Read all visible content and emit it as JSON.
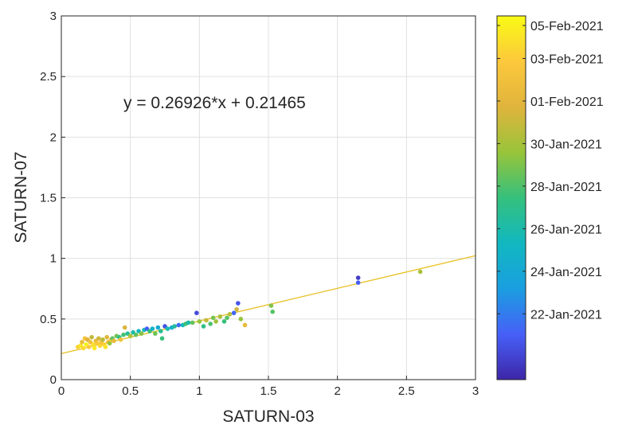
{
  "chart_data": {
    "type": "scatter",
    "title": "",
    "xlabel": "SATURN-03",
    "ylabel": "SATURN-07",
    "xlim": [
      0,
      3
    ],
    "ylim": [
      0,
      3
    ],
    "x_ticks": [
      "0",
      "0.5",
      "1",
      "1.5",
      "2",
      "2.5",
      "3"
    ],
    "y_ticks": [
      "0",
      "0.5",
      "1",
      "1.5",
      "2",
      "2.5",
      "3"
    ],
    "grid": true,
    "annotation": "y = 0.26926*x + 0.21465",
    "fit_line": {
      "slope": 0.26926,
      "intercept": 0.21465,
      "color": "#e8c020"
    },
    "colorbar": {
      "ticks": [
        "05-Feb-2021",
        "03-Feb-2021",
        "01-Feb-2021",
        "30-Jan-2021",
        "28-Jan-2021",
        "26-Jan-2021",
        "24-Jan-2021",
        "22-Jan-2021"
      ],
      "tick_values": [
        1.0,
        0.883,
        0.766,
        0.649,
        0.532,
        0.415,
        0.298,
        0.181
      ],
      "colormap": [
        "#3e26a8",
        "#4760f8",
        "#1a9ee0",
        "#11b8c0",
        "#35c07c",
        "#98c43a",
        "#e0b43c",
        "#fcc83c",
        "#f9fb15"
      ]
    },
    "points": [
      {
        "x": 0.12,
        "y": 0.27,
        "c": 0.9
      },
      {
        "x": 0.14,
        "y": 0.28,
        "c": 0.95
      },
      {
        "x": 0.15,
        "y": 0.31,
        "c": 0.8
      },
      {
        "x": 0.16,
        "y": 0.26,
        "c": 0.92
      },
      {
        "x": 0.17,
        "y": 0.34,
        "c": 0.85
      },
      {
        "x": 0.18,
        "y": 0.29,
        "c": 0.98
      },
      {
        "x": 0.19,
        "y": 0.33,
        "c": 0.75
      },
      {
        "x": 0.2,
        "y": 0.27,
        "c": 0.88
      },
      {
        "x": 0.21,
        "y": 0.31,
        "c": 0.82
      },
      {
        "x": 0.22,
        "y": 0.35,
        "c": 0.7
      },
      {
        "x": 0.23,
        "y": 0.29,
        "c": 0.93
      },
      {
        "x": 0.24,
        "y": 0.26,
        "c": 0.96
      },
      {
        "x": 0.25,
        "y": 0.32,
        "c": 0.78
      },
      {
        "x": 0.26,
        "y": 0.3,
        "c": 0.86
      },
      {
        "x": 0.27,
        "y": 0.34,
        "c": 0.72
      },
      {
        "x": 0.28,
        "y": 0.28,
        "c": 0.91
      },
      {
        "x": 0.29,
        "y": 0.31,
        "c": 0.84
      },
      {
        "x": 0.3,
        "y": 0.33,
        "c": 0.68
      },
      {
        "x": 0.31,
        "y": 0.29,
        "c": 0.89
      },
      {
        "x": 0.32,
        "y": 0.27,
        "c": 0.94
      },
      {
        "x": 0.33,
        "y": 0.35,
        "c": 0.76
      },
      {
        "x": 0.34,
        "y": 0.31,
        "c": 0.81
      },
      {
        "x": 0.35,
        "y": 0.3,
        "c": 0.62
      },
      {
        "x": 0.36,
        "y": 0.33,
        "c": 0.87
      },
      {
        "x": 0.37,
        "y": 0.34,
        "c": 0.55
      },
      {
        "x": 0.38,
        "y": 0.32,
        "c": 0.79
      },
      {
        "x": 0.4,
        "y": 0.36,
        "c": 0.58
      },
      {
        "x": 0.42,
        "y": 0.35,
        "c": 0.48
      },
      {
        "x": 0.43,
        "y": 0.33,
        "c": 0.83
      },
      {
        "x": 0.45,
        "y": 0.37,
        "c": 0.52
      },
      {
        "x": 0.46,
        "y": 0.43,
        "c": 0.74
      },
      {
        "x": 0.48,
        "y": 0.38,
        "c": 0.45
      },
      {
        "x": 0.5,
        "y": 0.36,
        "c": 0.66
      },
      {
        "x": 0.52,
        "y": 0.39,
        "c": 0.42
      },
      {
        "x": 0.54,
        "y": 0.37,
        "c": 0.55
      },
      {
        "x": 0.56,
        "y": 0.4,
        "c": 0.38
      },
      {
        "x": 0.58,
        "y": 0.38,
        "c": 0.6
      },
      {
        "x": 0.6,
        "y": 0.41,
        "c": 0.4
      },
      {
        "x": 0.62,
        "y": 0.42,
        "c": 0.12
      },
      {
        "x": 0.64,
        "y": 0.4,
        "c": 0.5
      },
      {
        "x": 0.66,
        "y": 0.42,
        "c": 0.35
      },
      {
        "x": 0.68,
        "y": 0.38,
        "c": 0.57
      },
      {
        "x": 0.7,
        "y": 0.43,
        "c": 0.3
      },
      {
        "x": 0.72,
        "y": 0.4,
        "c": 0.46
      },
      {
        "x": 0.73,
        "y": 0.34,
        "c": 0.5
      },
      {
        "x": 0.75,
        "y": 0.44,
        "c": 0.1
      },
      {
        "x": 0.77,
        "y": 0.42,
        "c": 0.4
      },
      {
        "x": 0.8,
        "y": 0.43,
        "c": 0.33
      },
      {
        "x": 0.82,
        "y": 0.44,
        "c": 0.44
      },
      {
        "x": 0.85,
        "y": 0.45,
        "c": 0.15
      },
      {
        "x": 0.88,
        "y": 0.45,
        "c": 0.38
      },
      {
        "x": 0.9,
        "y": 0.46,
        "c": 0.52
      },
      {
        "x": 0.92,
        "y": 0.47,
        "c": 0.42
      },
      {
        "x": 0.95,
        "y": 0.47,
        "c": 0.56
      },
      {
        "x": 0.98,
        "y": 0.55,
        "c": 0.08
      },
      {
        "x": 1.0,
        "y": 0.48,
        "c": 0.62
      },
      {
        "x": 1.03,
        "y": 0.44,
        "c": 0.48
      },
      {
        "x": 1.05,
        "y": 0.49,
        "c": 0.7
      },
      {
        "x": 1.08,
        "y": 0.46,
        "c": 0.53
      },
      {
        "x": 1.1,
        "y": 0.51,
        "c": 0.58
      },
      {
        "x": 1.12,
        "y": 0.48,
        "c": 0.64
      },
      {
        "x": 1.15,
        "y": 0.52,
        "c": 0.66
      },
      {
        "x": 1.18,
        "y": 0.48,
        "c": 0.5
      },
      {
        "x": 1.2,
        "y": 0.51,
        "c": 0.55
      },
      {
        "x": 1.22,
        "y": 0.54,
        "c": 0.68
      },
      {
        "x": 1.25,
        "y": 0.55,
        "c": 0.14
      },
      {
        "x": 1.27,
        "y": 0.58,
        "c": 0.72
      },
      {
        "x": 1.28,
        "y": 0.63,
        "c": 0.1
      },
      {
        "x": 1.3,
        "y": 0.5,
        "c": 0.62
      },
      {
        "x": 1.33,
        "y": 0.45,
        "c": 0.78
      },
      {
        "x": 1.52,
        "y": 0.61,
        "c": 0.6
      },
      {
        "x": 1.53,
        "y": 0.56,
        "c": 0.54
      },
      {
        "x": 2.15,
        "y": 0.84,
        "c": 0.05
      },
      {
        "x": 2.15,
        "y": 0.8,
        "c": 0.12
      },
      {
        "x": 2.6,
        "y": 0.89,
        "c": 0.65
      }
    ]
  }
}
